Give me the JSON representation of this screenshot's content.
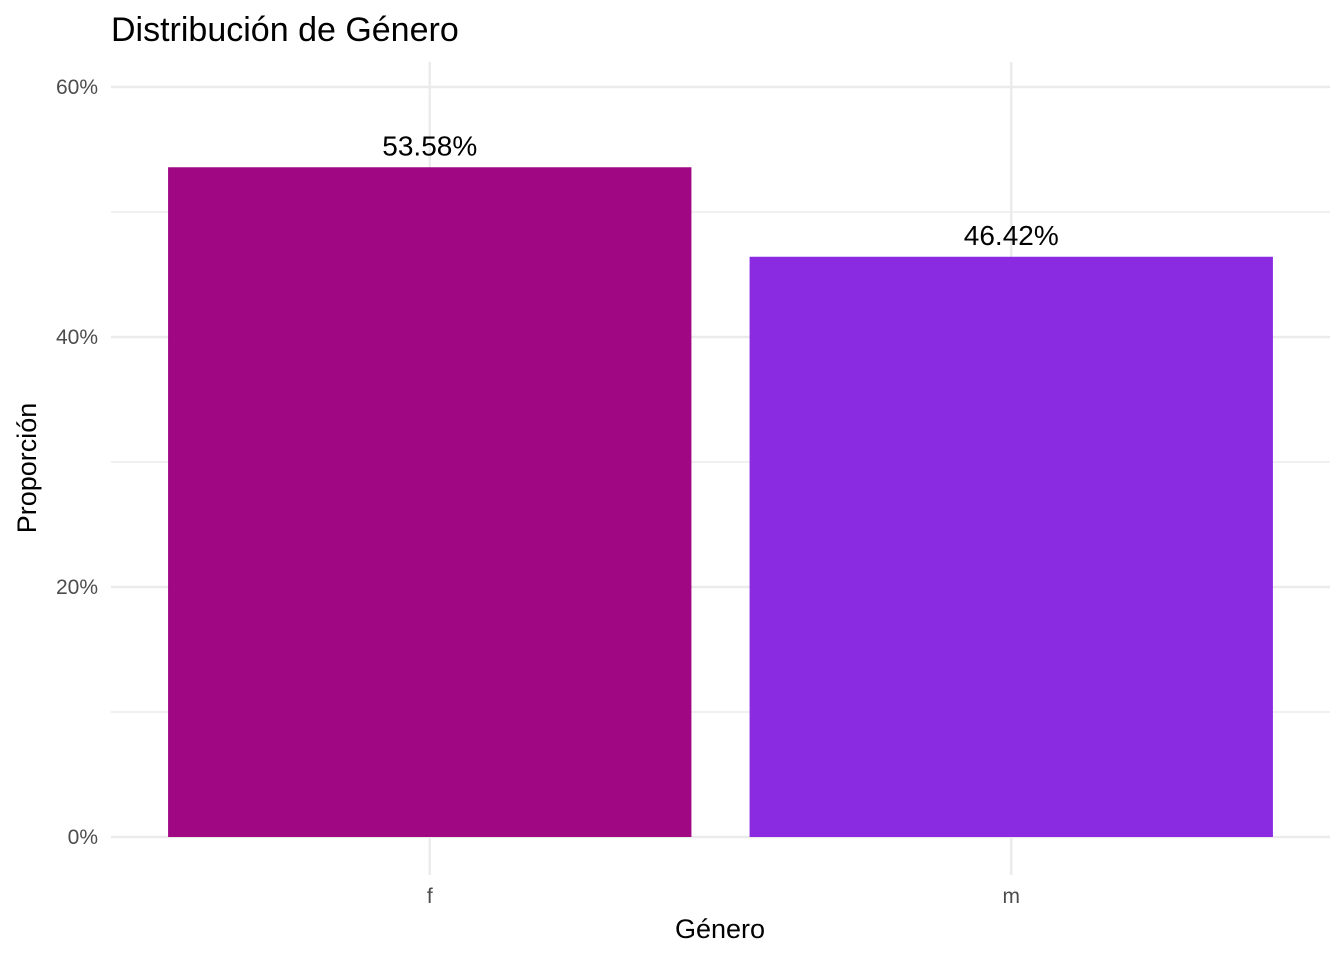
{
  "chart_data": {
    "type": "bar",
    "title": "Distribución de Género",
    "xlabel": "Género",
    "ylabel": "Proporción",
    "categories": [
      "f",
      "m"
    ],
    "values": [
      53.58,
      46.42
    ],
    "data_labels": [
      "53.58%",
      "46.42%"
    ],
    "colors": [
      "#A00783",
      "#8A2BE2"
    ],
    "ylim": [
      0,
      60
    ],
    "yticks": [
      0,
      20,
      40,
      60
    ],
    "ytick_labels": [
      "0%",
      "20%",
      "40%",
      "60%"
    ],
    "grid": true,
    "legend": "none"
  }
}
